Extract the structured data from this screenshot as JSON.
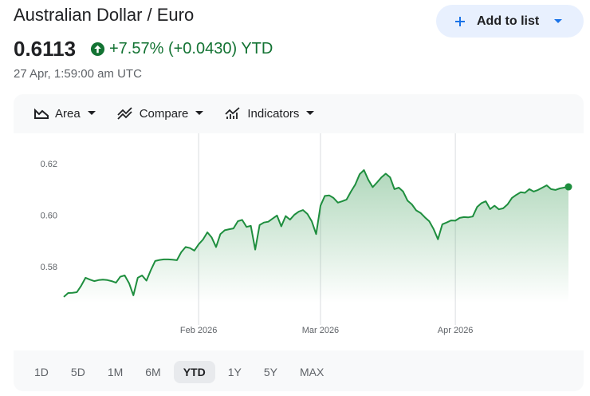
{
  "header": {
    "title": "Australian Dollar / Euro",
    "price": "0.6113",
    "change": "+7.57% (+0.0430) YTD",
    "timestamp": "27 Apr, 1:59:00 am UTC",
    "button": "Add to list"
  },
  "toolbar": [
    "Area",
    "Compare",
    "Indicators"
  ],
  "ranges": [
    "1D",
    "5D",
    "1M",
    "6M",
    "YTD",
    "1Y",
    "5Y",
    "MAX"
  ],
  "selected_range": "YTD",
  "chart_data": {
    "type": "area",
    "color": "#1e8e3e",
    "values": [
      0.5687,
      0.5702,
      0.5703,
      0.5705,
      0.573,
      0.5761,
      0.5754,
      0.5748,
      0.5752,
      0.5754,
      0.5752,
      0.5748,
      0.5742,
      0.5765,
      0.577,
      0.574,
      0.5693,
      0.5761,
      0.577,
      0.575,
      0.579,
      0.5826,
      0.583,
      0.5832,
      0.5832,
      0.5831,
      0.5829,
      0.586,
      0.588,
      0.5876,
      0.5866,
      0.5891,
      0.5909,
      0.5937,
      0.5917,
      0.588,
      0.593,
      0.5945,
      0.5949,
      0.5952,
      0.598,
      0.5985,
      0.5958,
      0.5962,
      0.587,
      0.5965,
      0.5975,
      0.5978,
      0.599,
      0.6002,
      0.596,
      0.6,
      0.5986,
      0.6005,
      0.6017,
      0.6023,
      0.6008,
      0.598,
      0.593,
      0.604,
      0.6078,
      0.608,
      0.607,
      0.6052,
      0.6057,
      0.6064,
      0.6095,
      0.6122,
      0.6162,
      0.6178,
      0.614,
      0.6112,
      0.613,
      0.615,
      0.6164,
      0.615,
      0.6104,
      0.611,
      0.6095,
      0.606,
      0.6045,
      0.6022,
      0.6012,
      0.5995,
      0.598,
      0.595,
      0.591,
      0.5968,
      0.5975,
      0.5983,
      0.5982,
      0.5993,
      0.5996,
      0.5995,
      0.5998,
      0.6035,
      0.605,
      0.6057,
      0.6027,
      0.604,
      0.6026,
      0.603,
      0.6045,
      0.607,
      0.6082,
      0.6092,
      0.609,
      0.6104,
      0.6095,
      0.6101,
      0.611,
      0.6119,
      0.6104,
      0.6101,
      0.6107,
      0.611,
      0.6113
    ],
    "xlim": [
      0,
      116
    ],
    "xticks": [
      {
        "value": 31,
        "label": "Feb 2026"
      },
      {
        "value": 59,
        "label": "Mar 2026"
      },
      {
        "value": 90,
        "label": "Apr 2026"
      }
    ],
    "ylim": [
      0.56,
      0.628
    ],
    "yticks": [
      0.58,
      {
        "value": 0.6,
        "label": "0.60"
      },
      0.62
    ],
    "grid": "x"
  }
}
